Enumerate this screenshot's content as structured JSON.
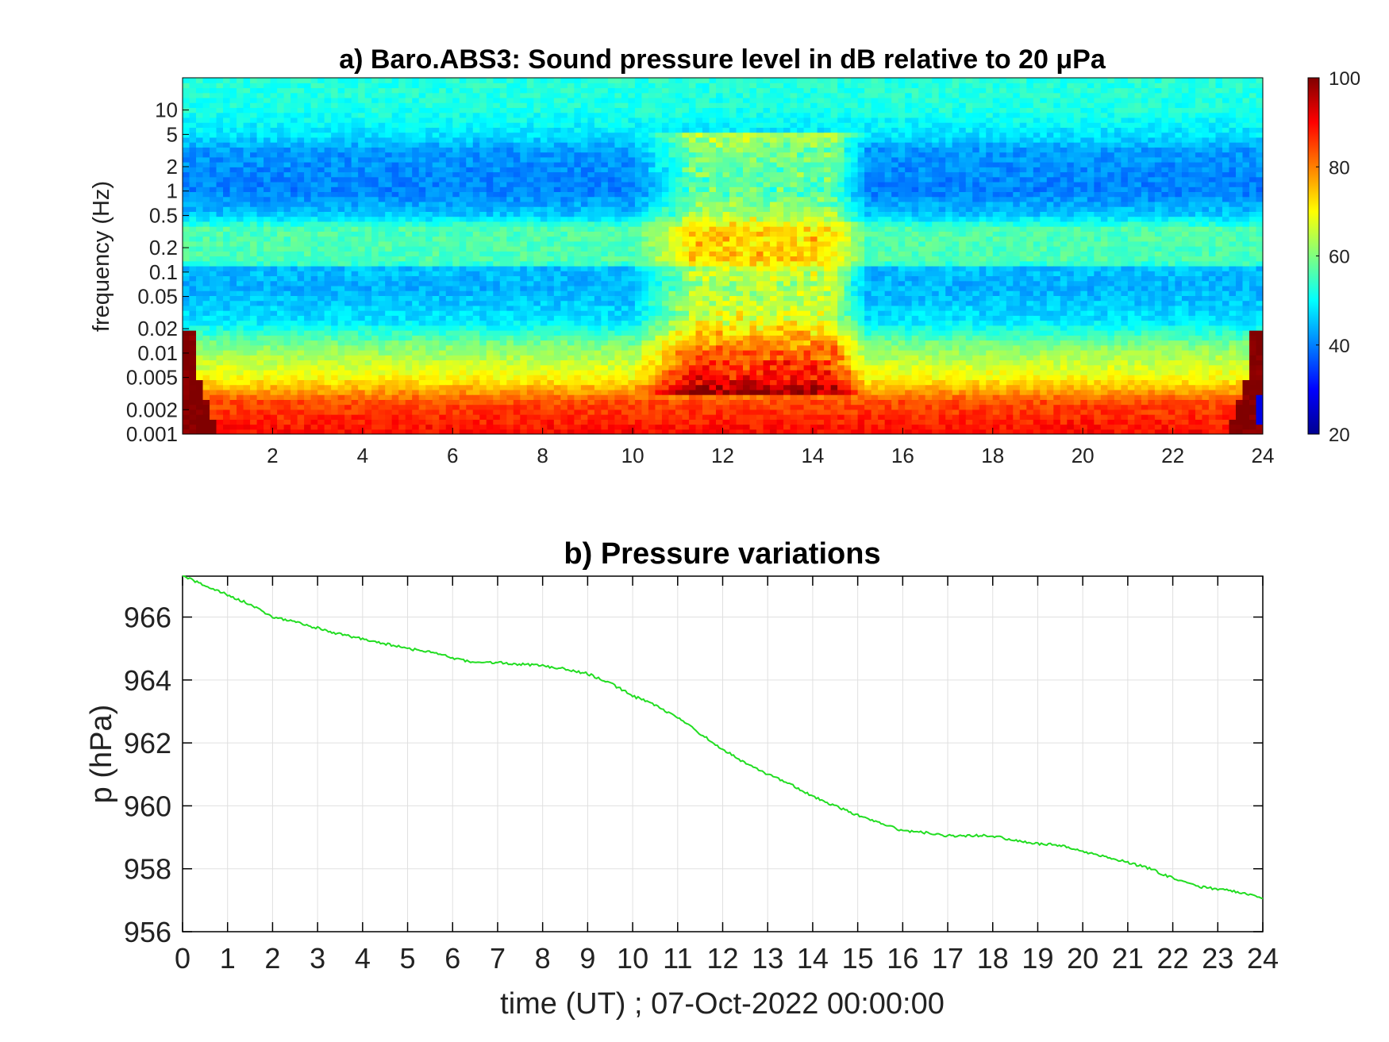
{
  "figure": {
    "panels": [
      "spectrogram",
      "pressure"
    ]
  },
  "chart_data": [
    {
      "type": "heatmap",
      "title": "a) Baro.ABS3: Sound pressure level in dB relative to 20 μPa",
      "xlabel": "",
      "ylabel": "frequency (Hz)",
      "x_ticks": [
        "2",
        "4",
        "6",
        "8",
        "10",
        "12",
        "14",
        "16",
        "18",
        "20",
        "22",
        "24"
      ],
      "x_tick_values": [
        2,
        4,
        6,
        8,
        10,
        12,
        14,
        16,
        18,
        20,
        22,
        24
      ],
      "xlim": [
        0,
        24
      ],
      "y_scale": "log",
      "y_ticks": [
        "10",
        "5",
        "2",
        "1",
        "0.5",
        "0.2",
        "0.1",
        "0.05",
        "0.02",
        "0.01",
        "0.005",
        "0.002",
        "0.001"
      ],
      "y_tick_values": [
        10,
        5,
        2,
        1,
        0.5,
        0.2,
        0.1,
        0.05,
        0.02,
        0.01,
        0.005,
        0.002,
        0.001
      ],
      "ylim": [
        0.001,
        25
      ],
      "colormap": "jet",
      "colorbar": {
        "ticks": [
          "100",
          "80",
          "60",
          "40",
          "20"
        ],
        "tick_values": [
          100,
          80,
          60,
          40,
          20
        ],
        "range": [
          20,
          100
        ]
      },
      "features": [
        {
          "description": "cyan band at high frequency",
          "freq_range": [
            5,
            25
          ],
          "level_db": 50
        },
        {
          "description": "blue low band",
          "freq_range": [
            0.5,
            5
          ],
          "level_db": 40
        },
        {
          "description": "green band",
          "freq_range": [
            0.13,
            0.5
          ],
          "level_db": 55
        },
        {
          "description": "blue striated band",
          "freq_range": [
            0.02,
            0.13
          ],
          "level_db": 43
        },
        {
          "description": "yellow-orange band",
          "freq_range": [
            0.004,
            0.02
          ],
          "level_db": 68
        },
        {
          "description": "red band at lowest frequency",
          "freq_range": [
            0.001,
            0.004
          ],
          "level_db": 85
        },
        {
          "description": "broadband burst (yellow/green)",
          "time_range": [
            10,
            15
          ],
          "level_db": 65
        },
        {
          "description": "dark red edges",
          "time_range": [
            0,
            0.6
          ],
          "level_db": 100
        }
      ]
    },
    {
      "type": "line",
      "title": "b) Pressure variations",
      "xlabel": "time (UT) ; 07-Oct-2022 00:00:00",
      "ylabel": "p (hPa)",
      "xlim": [
        0,
        24
      ],
      "ylim": [
        956,
        967.3
      ],
      "x_ticks": [
        "0",
        "1",
        "2",
        "3",
        "4",
        "5",
        "6",
        "7",
        "8",
        "9",
        "10",
        "11",
        "12",
        "13",
        "14",
        "15",
        "16",
        "17",
        "18",
        "19",
        "20",
        "21",
        "22",
        "23",
        "24"
      ],
      "y_ticks": [
        "956",
        "958",
        "960",
        "962",
        "964",
        "966"
      ],
      "y_tick_values": [
        956,
        958,
        960,
        962,
        964,
        966
      ],
      "grid": true,
      "series": [
        {
          "color": "#22dd22",
          "x": [
            0,
            0.5,
            1,
            1.5,
            2,
            2.5,
            3,
            3.5,
            4,
            4.5,
            5,
            5.5,
            6,
            6.5,
            7,
            7.5,
            8,
            8.5,
            9,
            9.5,
            10,
            10.5,
            11,
            11.5,
            12,
            12.5,
            13,
            13.5,
            14,
            14.5,
            15,
            15.5,
            16,
            16.5,
            17,
            17.5,
            18,
            18.5,
            19,
            19.5,
            20,
            20.5,
            21,
            21.5,
            22,
            22.5,
            23,
            23.5,
            24
          ],
          "y": [
            967.3,
            967.0,
            966.7,
            966.4,
            966.0,
            965.85,
            965.65,
            965.45,
            965.3,
            965.15,
            965.0,
            964.9,
            964.7,
            964.55,
            964.55,
            964.5,
            964.45,
            964.35,
            964.2,
            963.9,
            963.5,
            963.2,
            962.8,
            962.3,
            961.8,
            961.35,
            961.0,
            960.7,
            960.3,
            960.0,
            959.7,
            959.45,
            959.2,
            959.15,
            959.05,
            959.05,
            959.05,
            958.9,
            958.8,
            958.75,
            958.55,
            958.4,
            958.2,
            958.0,
            957.7,
            957.45,
            957.35,
            957.25,
            957.05
          ]
        }
      ]
    }
  ]
}
